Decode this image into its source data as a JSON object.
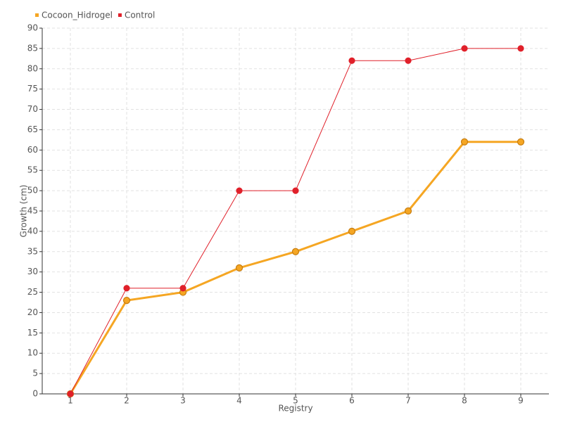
{
  "chart_data": {
    "type": "line",
    "x_label": "Registry",
    "y_label": "Growth (cm)",
    "x": [
      1,
      2,
      3,
      4,
      5,
      6,
      7,
      8,
      9
    ],
    "xlim": [
      0.5,
      9.5
    ],
    "xticks": [
      1,
      2,
      3,
      4,
      5,
      6,
      7,
      8,
      9
    ],
    "ylim": [
      0,
      90
    ],
    "yticks": [
      0,
      5,
      10,
      15,
      20,
      25,
      30,
      35,
      40,
      45,
      50,
      55,
      60,
      65,
      70,
      75,
      80,
      85,
      90
    ],
    "grid": true,
    "legend": "top-left",
    "series": [
      {
        "name": "Cocoon_Hidrogel",
        "color": "#f5a623",
        "values": [
          0,
          23,
          25,
          31,
          35,
          40,
          45,
          62,
          62
        ]
      },
      {
        "name": "Control",
        "color": "#e0202a",
        "values": [
          0,
          26,
          26,
          50,
          50,
          82,
          82,
          85,
          85
        ]
      }
    ]
  }
}
